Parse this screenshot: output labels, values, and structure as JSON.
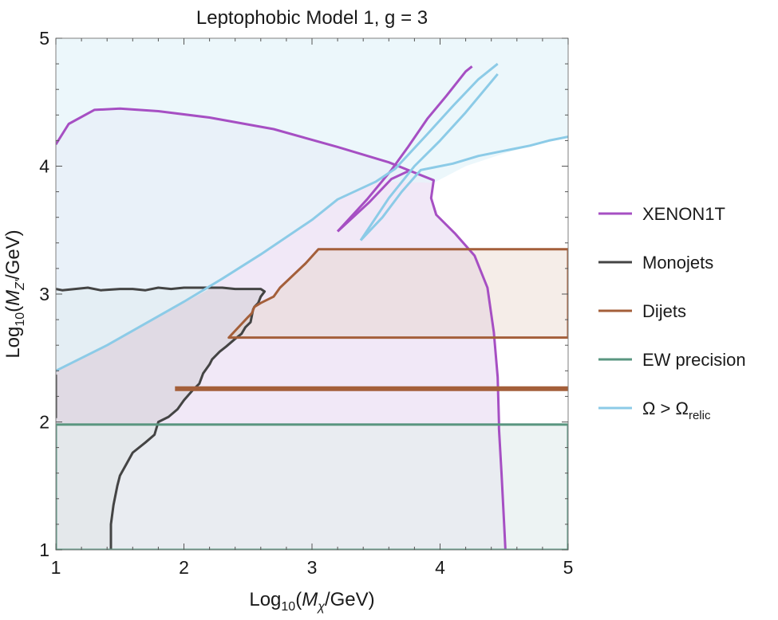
{
  "chart_data": {
    "type": "area",
    "title": "Leptophobic Model 1, g = 3",
    "xlabel": {
      "pre": "Log",
      "sub": "10",
      "mid": "(",
      "var": "M",
      "varsub": "χ",
      "post": "/GeV)"
    },
    "ylabel": {
      "pre": "Log",
      "sub": "10",
      "mid": "(",
      "var": "M",
      "varsub": "Z'",
      "post": "/GeV)"
    },
    "xlim": [
      1,
      5
    ],
    "ylim": [
      1,
      5
    ],
    "xticks": [
      "1",
      "2",
      "3",
      "4",
      "5"
    ],
    "yticks": [
      "1",
      "2",
      "3",
      "4",
      "5"
    ],
    "grid": false,
    "legend_position": "right",
    "legend": [
      {
        "label": "XENON1T",
        "color": "#a64fc3"
      },
      {
        "label": "Monojets",
        "color": "#444444"
      },
      {
        "label": "Dijets",
        "color": "#a45f3a"
      },
      {
        "label": "EW precision",
        "color": "#5a9680"
      },
      {
        "label": "Ω > Ω",
        "sub": "relic",
        "color": "#8ccbe7"
      }
    ],
    "series": [
      {
        "name": "XENON1T",
        "color": "#a64fc3",
        "fill": "#e6d6f0",
        "fill_opacity": 0.55,
        "polygons": [
          [
            [
              1,
              4.17
            ],
            [
              1.1,
              4.33
            ],
            [
              1.3,
              4.44
            ],
            [
              1.5,
              4.45
            ],
            [
              1.8,
              4.43
            ],
            [
              2.2,
              4.38
            ],
            [
              2.7,
              4.29
            ],
            [
              3.2,
              4.15
            ],
            [
              3.6,
              4.03
            ],
            [
              3.95,
              3.89
            ],
            [
              3.93,
              3.75
            ],
            [
              3.97,
              3.62
            ],
            [
              4.12,
              3.47
            ],
            [
              4.27,
              3.3
            ],
            [
              4.37,
              3.05
            ],
            [
              4.42,
              2.7
            ],
            [
              4.45,
              2.35
            ],
            [
              4.46,
              2
            ],
            [
              4.46,
              1.95
            ],
            [
              4.48,
              1.6
            ],
            [
              4.5,
              1.2
            ],
            [
              4.51,
              1
            ],
            [
              1,
              1
            ]
          ]
        ],
        "lines": [
          [
            [
              3.2,
              3.49
            ],
            [
              3.43,
              3.74
            ],
            [
              3.62,
              3.97
            ],
            [
              3.75,
              4.15
            ],
            [
              3.9,
              4.37
            ],
            [
              4.05,
              4.55
            ],
            [
              4.2,
              4.74
            ],
            [
              4.25,
              4.78
            ]
          ],
          [
            [
              3.2,
              3.49
            ],
            [
              3.45,
              3.72
            ],
            [
              3.62,
              3.9
            ],
            [
              3.75,
              3.96
            ]
          ]
        ]
      },
      {
        "name": "Monojets",
        "color": "#444444",
        "fill": "#bbbbbb",
        "fill_opacity": 0.3,
        "polygons": [
          [
            [
              1,
              3.04
            ],
            [
              1.05,
              3.03
            ],
            [
              1.15,
              3.04
            ],
            [
              1.25,
              3.05
            ],
            [
              1.35,
              3.03
            ],
            [
              1.5,
              3.04
            ],
            [
              1.6,
              3.04
            ],
            [
              1.7,
              3.03
            ],
            [
              1.8,
              3.05
            ],
            [
              1.9,
              3.04
            ],
            [
              2.0,
              3.05
            ],
            [
              2.1,
              3.05
            ],
            [
              2.3,
              3.05
            ],
            [
              2.4,
              3.04
            ],
            [
              2.6,
              3.04
            ],
            [
              2.63,
              3.02
            ],
            [
              2.6,
              2.98
            ],
            [
              2.58,
              2.93
            ],
            [
              2.55,
              2.9
            ],
            [
              2.54,
              2.88
            ],
            [
              2.53,
              2.83
            ],
            [
              2.52,
              2.78
            ],
            [
              2.48,
              2.74
            ],
            [
              2.45,
              2.69
            ],
            [
              2.4,
              2.65
            ],
            [
              2.33,
              2.59
            ],
            [
              2.28,
              2.55
            ],
            [
              2.22,
              2.49
            ],
            [
              2.2,
              2.45
            ],
            [
              2.15,
              2.38
            ],
            [
              2.12,
              2.3
            ],
            [
              2.07,
              2.25
            ],
            [
              2.0,
              2.17
            ],
            [
              1.95,
              2.1
            ],
            [
              1.88,
              2.04
            ],
            [
              1.8,
              2.0
            ],
            [
              1.77,
              1.9
            ],
            [
              1.7,
              1.84
            ],
            [
              1.6,
              1.76
            ],
            [
              1.55,
              1.67
            ],
            [
              1.5,
              1.58
            ],
            [
              1.48,
              1.5
            ],
            [
              1.45,
              1.35
            ],
            [
              1.43,
              1.2
            ],
            [
              1.43,
              1
            ],
            [
              1,
              1
            ]
          ]
        ],
        "lines": [
          [
            [
              1,
              2.37
            ],
            [
              1,
              2.03
            ]
          ]
        ]
      },
      {
        "name": "Dijets",
        "color": "#a45f3a",
        "fill": "#e6d2c6",
        "fill_opacity": 0.4,
        "polygons": [
          [
            [
              2.35,
              2.66
            ],
            [
              2.5,
              2.82
            ],
            [
              2.53,
              2.85
            ],
            [
              2.55,
              2.9
            ],
            [
              2.6,
              2.93
            ],
            [
              2.7,
              2.98
            ],
            [
              2.75,
              3.05
            ],
            [
              2.95,
              3.24
            ],
            [
              3.05,
              3.35
            ],
            [
              5,
              3.35
            ],
            [
              5,
              2.66
            ]
          ]
        ],
        "bands": [
          [
            [
              1.93,
              2.26
            ],
            [
              5,
              2.26
            ]
          ]
        ]
      },
      {
        "name": "EW precision",
        "color": "#5a9680",
        "fill": "#e6eeee",
        "fill_opacity": 0.7,
        "polygons": [
          [
            [
              1,
              1
            ],
            [
              5,
              1
            ],
            [
              5,
              1.98
            ],
            [
              1,
              1.98
            ]
          ]
        ]
      },
      {
        "name": "Ω > Ω relic",
        "color": "#8ccbe7",
        "fill": "#e6f4f9",
        "fill_opacity": 0.75,
        "polygons": [
          [
            [
              1,
              2.4
            ],
            [
              1.4,
              2.6
            ],
            [
              1.8,
              2.82
            ],
            [
              2.2,
              3.04
            ],
            [
              2.6,
              3.3
            ],
            [
              3.0,
              3.58
            ],
            [
              3.2,
              3.74
            ],
            [
              3.5,
              3.88
            ],
            [
              3.95,
              3.87
            ],
            [
              4.2,
              4.0
            ],
            [
              4.5,
              4.1
            ],
            [
              4.8,
              4.18
            ],
            [
              5,
              4.23
            ],
            [
              5,
              5
            ],
            [
              1,
              5
            ]
          ]
        ],
        "lines": [
          [
            [
              1,
              2.4
            ],
            [
              1.4,
              2.6
            ],
            [
              1.7,
              2.77
            ],
            [
              2.0,
              2.94
            ],
            [
              2.3,
              3.12
            ],
            [
              2.6,
              3.31
            ],
            [
              3.0,
              3.58
            ],
            [
              3.2,
              3.74
            ],
            [
              3.5,
              3.88
            ],
            [
              3.65,
              3.98
            ],
            [
              3.9,
              4.25
            ],
            [
              4.1,
              4.47
            ],
            [
              4.3,
              4.68
            ],
            [
              4.45,
              4.8
            ]
          ],
          [
            [
              3.38,
              3.42
            ],
            [
              3.55,
              3.6
            ],
            [
              3.7,
              3.8
            ],
            [
              3.85,
              3.97
            ],
            [
              3.95,
              3.99
            ],
            [
              4.1,
              4.02
            ],
            [
              4.3,
              4.08
            ],
            [
              4.5,
              4.12
            ],
            [
              4.7,
              4.16
            ],
            [
              4.85,
              4.2
            ],
            [
              5,
              4.23
            ]
          ],
          [
            [
              3.38,
              3.42
            ],
            [
              3.6,
              3.75
            ],
            [
              3.8,
              4.0
            ],
            [
              4.0,
              4.2
            ],
            [
              4.2,
              4.42
            ],
            [
              4.45,
              4.72
            ]
          ]
        ]
      }
    ]
  }
}
